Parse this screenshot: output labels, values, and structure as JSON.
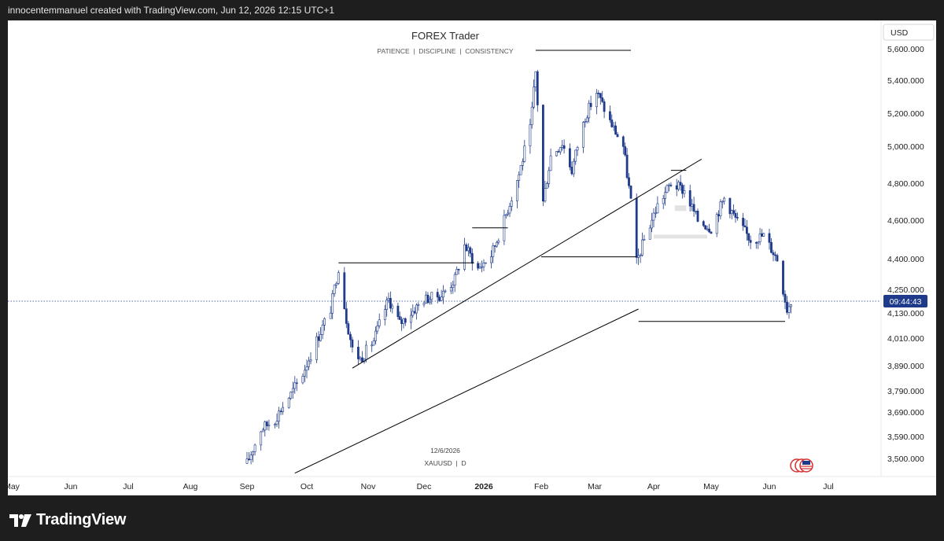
{
  "header": {
    "attribution": "innocentemmanuel created with TradingView.com, Jun 12, 2026 12:15 UTC+1"
  },
  "watermark": {
    "title": "FOREX Trader",
    "subtitle": "PATIENCE  |  DISCIPLINE  |  CONSISTENCY"
  },
  "footer": {
    "brand": "TradingView"
  },
  "colors": {
    "candle": "#1e3a8a",
    "line": "#000000",
    "price_tag": "#1e3a8a",
    "zone": "#e3e3e3",
    "background": "#ffffff"
  },
  "chart_data": {
    "type": "candlestick",
    "symbol_label": "XAUUSD  |  D",
    "date_label": "12/6/2026",
    "currency_button": "USD",
    "countdown": "09:44:43",
    "current_price": 4190,
    "y_axis": {
      "ticks": [
        {
          "value": 5600,
          "label": "5,600.000"
        },
        {
          "value": 5400,
          "label": "5,400.000"
        },
        {
          "value": 5200,
          "label": "5,200.000"
        },
        {
          "value": 5000,
          "label": "5,000.000"
        },
        {
          "value": 4800,
          "label": "4,800.000"
        },
        {
          "value": 4600,
          "label": "4,600.000"
        },
        {
          "value": 4400,
          "label": "4,400.000"
        },
        {
          "value": 4250,
          "label": "4,250.000"
        },
        {
          "value": 4130,
          "label": "4,130.000"
        },
        {
          "value": 4010,
          "label": "4,010.000"
        },
        {
          "value": 3890,
          "label": "3,890.000"
        },
        {
          "value": 3790,
          "label": "3,790.000"
        },
        {
          "value": 3690,
          "label": "3,690.000"
        },
        {
          "value": 3590,
          "label": "3,590.000"
        },
        {
          "value": 3500,
          "label": "3,500.000"
        }
      ]
    },
    "x_axis": {
      "ticks": [
        {
          "date": "2025-05-01",
          "label": "May"
        },
        {
          "date": "2025-06-01",
          "label": "Jun"
        },
        {
          "date": "2025-07-01",
          "label": "Jul"
        },
        {
          "date": "2025-08-01",
          "label": "Aug"
        },
        {
          "date": "2025-09-01",
          "label": "Sep"
        },
        {
          "date": "2025-10-01",
          "label": "Oct"
        },
        {
          "date": "2025-11-01",
          "label": "Nov"
        },
        {
          "date": "2025-12-01",
          "label": "Dec"
        },
        {
          "date": "2026-01-01",
          "label": "2026",
          "bold": true
        },
        {
          "date": "2026-02-01",
          "label": "Feb"
        },
        {
          "date": "2026-03-01",
          "label": "Mar"
        },
        {
          "date": "2026-04-01",
          "label": "Apr"
        },
        {
          "date": "2026-05-01",
          "label": "May"
        },
        {
          "date": "2026-06-01",
          "label": "Jun"
        },
        {
          "date": "2026-07-01",
          "label": "Jul"
        }
      ]
    },
    "close_path": [
      {
        "date": "2025-09-01",
        "price": 3480
      },
      {
        "date": "2025-09-08",
        "price": 3620
      },
      {
        "date": "2025-09-15",
        "price": 3660
      },
      {
        "date": "2025-09-22",
        "price": 3760
      },
      {
        "date": "2025-09-29",
        "price": 3860
      },
      {
        "date": "2025-10-06",
        "price": 4000
      },
      {
        "date": "2025-10-13",
        "price": 4150
      },
      {
        "date": "2025-10-17",
        "price": 4360
      },
      {
        "date": "2025-10-21",
        "price": 4100
      },
      {
        "date": "2025-10-24",
        "price": 3960
      },
      {
        "date": "2025-10-28",
        "price": 3920
      },
      {
        "date": "2025-11-04",
        "price": 4000
      },
      {
        "date": "2025-11-12",
        "price": 4200
      },
      {
        "date": "2025-11-18",
        "price": 4080
      },
      {
        "date": "2025-11-25",
        "price": 4140
      },
      {
        "date": "2025-12-01",
        "price": 4200
      },
      {
        "date": "2025-12-10",
        "price": 4220
      },
      {
        "date": "2025-12-17",
        "price": 4300
      },
      {
        "date": "2025-12-22",
        "price": 4470
      },
      {
        "date": "2025-12-29",
        "price": 4350
      },
      {
        "date": "2026-01-05",
        "price": 4420
      },
      {
        "date": "2026-01-12",
        "price": 4600
      },
      {
        "date": "2026-01-20",
        "price": 4850
      },
      {
        "date": "2026-01-26",
        "price": 5100
      },
      {
        "date": "2026-01-29",
        "price": 5450
      },
      {
        "date": "2026-02-02",
        "price": 4700
      },
      {
        "date": "2026-02-06",
        "price": 4950
      },
      {
        "date": "2026-02-12",
        "price": 5020
      },
      {
        "date": "2026-02-17",
        "price": 4870
      },
      {
        "date": "2026-02-24",
        "price": 5180
      },
      {
        "date": "2026-03-02",
        "price": 5330
      },
      {
        "date": "2026-03-09",
        "price": 5150
      },
      {
        "date": "2026-03-16",
        "price": 5000
      },
      {
        "date": "2026-03-20",
        "price": 4700
      },
      {
        "date": "2026-03-23",
        "price": 4380
      },
      {
        "date": "2026-03-27",
        "price": 4500
      },
      {
        "date": "2026-04-03",
        "price": 4680
      },
      {
        "date": "2026-04-10",
        "price": 4800
      },
      {
        "date": "2026-04-17",
        "price": 4760
      },
      {
        "date": "2026-04-24",
        "price": 4600
      },
      {
        "date": "2026-05-01",
        "price": 4560
      },
      {
        "date": "2026-05-08",
        "price": 4720
      },
      {
        "date": "2026-05-15",
        "price": 4590
      },
      {
        "date": "2026-05-22",
        "price": 4500
      },
      {
        "date": "2026-05-29",
        "price": 4520
      },
      {
        "date": "2026-06-05",
        "price": 4400
      },
      {
        "date": "2026-06-10",
        "price": 4150
      },
      {
        "date": "2026-06-12",
        "price": 4190
      }
    ],
    "drawings": {
      "trendlines": [
        {
          "from": {
            "date": "2025-10-24",
            "price": 3880
          },
          "to": {
            "date": "2026-04-26",
            "price": 4930
          }
        },
        {
          "from": {
            "date": "2025-09-25",
            "price": 3440
          },
          "to": {
            "date": "2026-03-24",
            "price": 4150
          }
        }
      ],
      "levels": [
        {
          "date": "2025-10-17",
          "end": "2025-12-27",
          "price": 4380
        },
        {
          "date": "2025-12-26",
          "end": "2026-01-14",
          "price": 4560
        },
        {
          "date": "2026-01-29",
          "end": "2026-03-20",
          "price": 5590
        },
        {
          "date": "2026-02-01",
          "end": "2026-03-23",
          "price": 4410
        },
        {
          "date": "2026-03-24",
          "end": "2026-06-09",
          "price": 4090
        },
        {
          "date": "2026-04-10",
          "end": "2026-04-18",
          "price": 4870
        }
      ],
      "zones": [
        {
          "start": "2026-04-12",
          "end": "2026-04-18",
          "low": 4650,
          "high": 4680
        },
        {
          "start": "2026-04-01",
          "end": "2026-04-29",
          "low": 4505,
          "high": 4525
        }
      ]
    }
  }
}
